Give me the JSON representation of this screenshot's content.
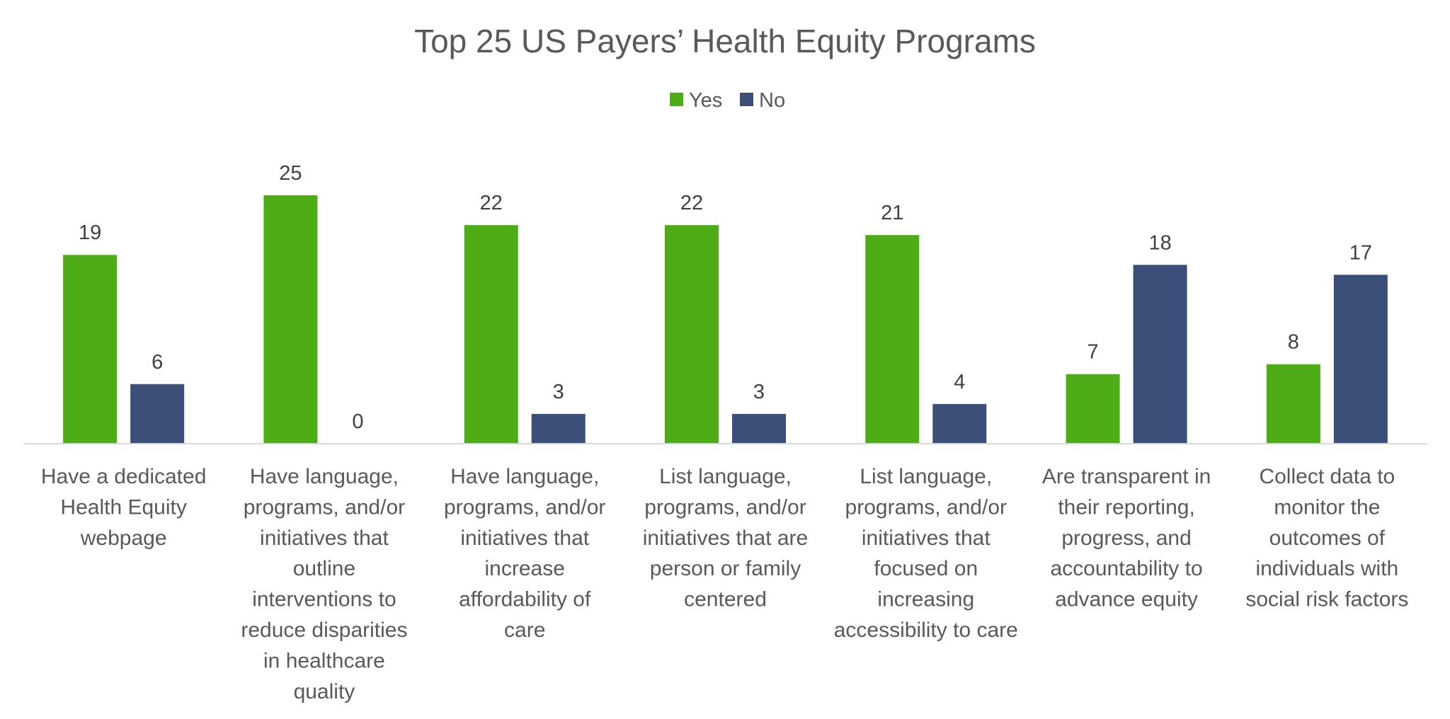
{
  "chart_data": {
    "type": "bar",
    "title": "Top 25 US Payers’ Health Equity Programs",
    "xlabel": "",
    "ylabel": "",
    "ylim": [
      0,
      25
    ],
    "grid": false,
    "legend_position": "top-center",
    "categories": [
      "Have a dedicated Health Equity webpage",
      "Have language, programs, and/or initiatives that outline interventions to reduce disparities in healthcare quality",
      "Have language, programs, and/or initiatives that increase affordability of care",
      "List language, programs, and/or initiatives that are person or family centered",
      "List language, programs, and/or initiatives that focused on increasing accessibility to care",
      "Are transparent in their reporting, progress, and accountability to advance equity",
      "Collect data to monitor the outcomes of individuals with social risk factors"
    ],
    "category_lines": [
      [
        "Have a dedicated",
        "Health Equity",
        "webpage"
      ],
      [
        "Have language,",
        "programs, and/or",
        "initiatives that",
        "outline",
        "interventions to",
        "reduce disparities",
        "in healthcare",
        "quality"
      ],
      [
        "Have language,",
        "programs, and/or",
        "initiatives that",
        "increase",
        "affordability of",
        "care"
      ],
      [
        "List language,",
        "programs, and/or",
        "initiatives that are",
        "person or family",
        "centered"
      ],
      [
        "List language,",
        "programs, and/or",
        "initiatives that",
        "focused on",
        "increasing",
        "accessibility to care"
      ],
      [
        "Are transparent in",
        "their reporting,",
        "progress, and",
        "accountability to",
        "advance equity"
      ],
      [
        "Collect data to",
        "monitor the",
        "outcomes of",
        "individuals with",
        "social risk factors"
      ]
    ],
    "series": [
      {
        "name": "Yes",
        "color": "#4eac16",
        "values": [
          19,
          25,
          22,
          22,
          21,
          7,
          8
        ]
      },
      {
        "name": "No",
        "color": "#3b4f78",
        "values": [
          6,
          0,
          3,
          3,
          4,
          18,
          17
        ]
      }
    ],
    "axis_color": "#d9d9d9"
  }
}
